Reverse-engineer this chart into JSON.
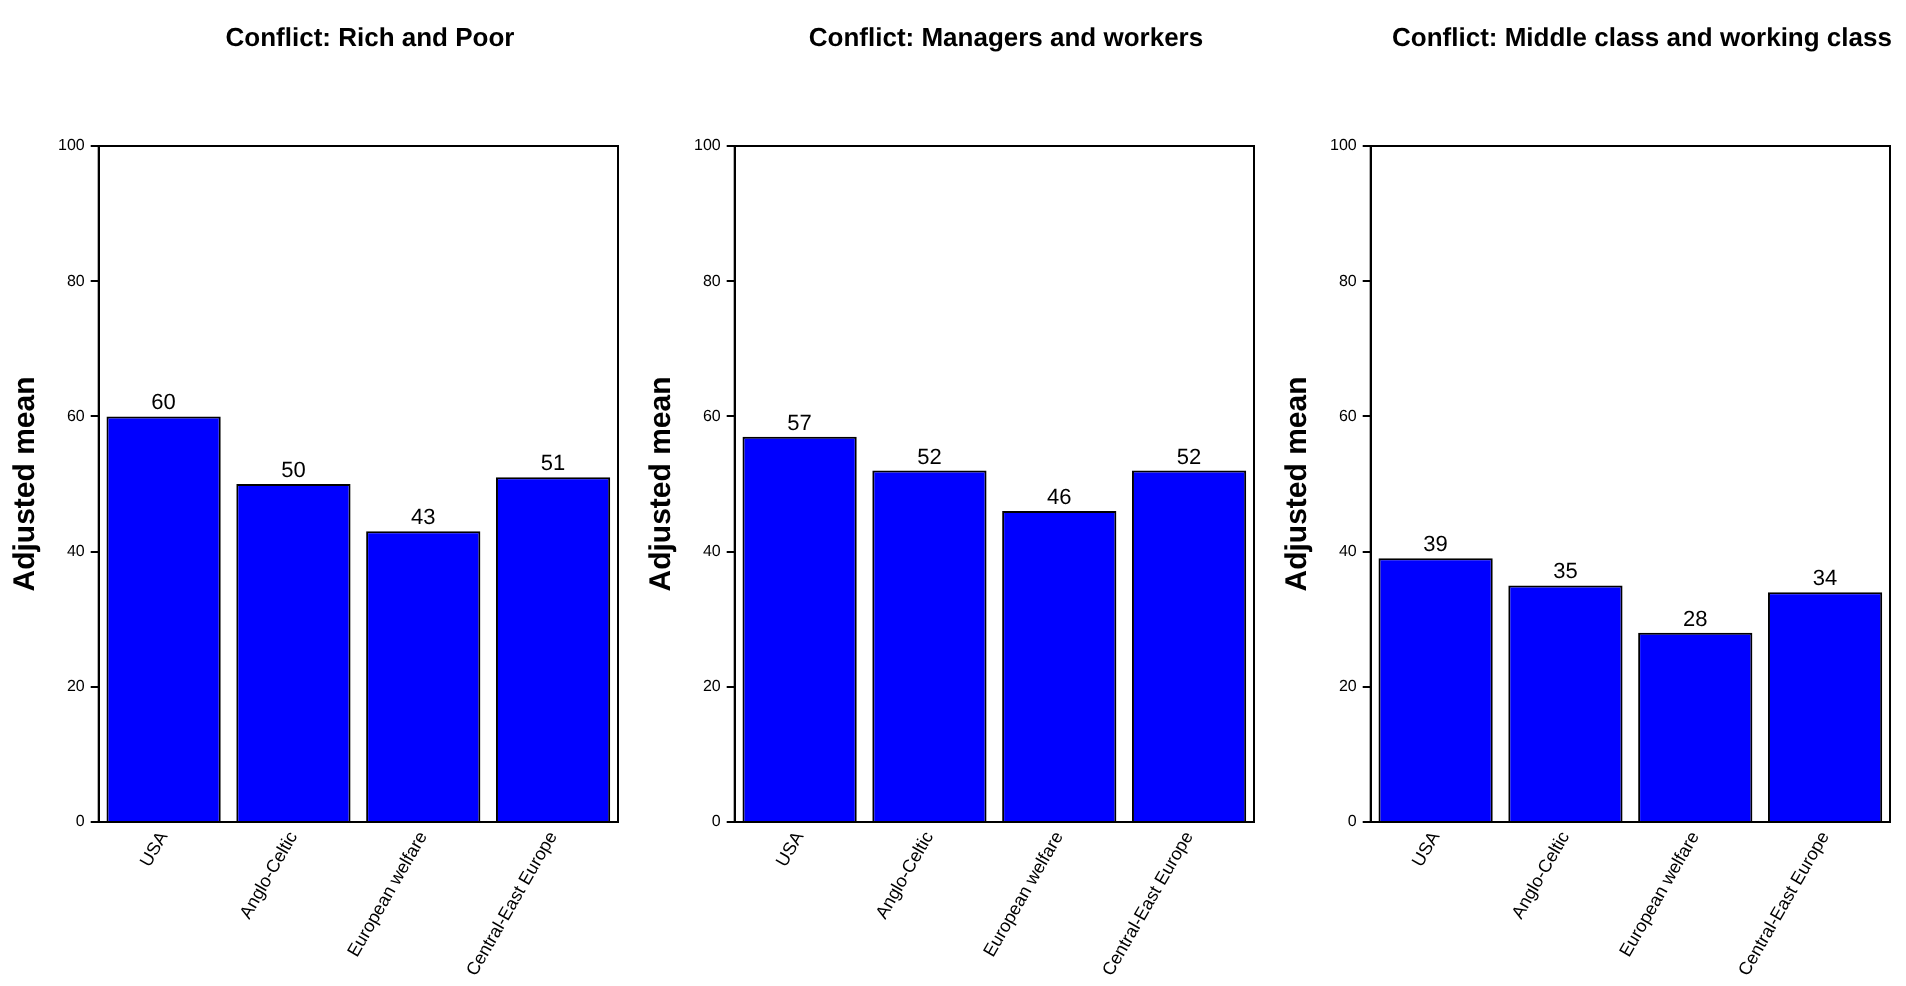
{
  "chart_data": [
    {
      "type": "bar",
      "title": "Conflict: Rich and Poor",
      "ylabel": "Adjusted mean",
      "categories": [
        "USA",
        "Anglo-Celtic",
        "European welfare",
        "Central-East Europe"
      ],
      "values": [
        60,
        50,
        43,
        51
      ],
      "color": "#0000ff",
      "ylim": [
        0,
        100
      ],
      "yticks": [
        0,
        20,
        40,
        60,
        80,
        100
      ],
      "data_labels": true,
      "grid": false,
      "legend": false
    },
    {
      "type": "bar",
      "title": "Conflict: Managers and workers",
      "ylabel": "Adjusted mean",
      "categories": [
        "USA",
        "Anglo-Celtic",
        "European welfare",
        "Central-East Europe"
      ],
      "values": [
        57,
        52,
        46,
        52
      ],
      "color": "#0000ff",
      "ylim": [
        0,
        100
      ],
      "yticks": [
        0,
        20,
        40,
        60,
        80,
        100
      ],
      "data_labels": true,
      "grid": false,
      "legend": false
    },
    {
      "type": "bar",
      "title": "Conflict: Middle class and working class",
      "ylabel": "Adjusted mean",
      "categories": [
        "USA",
        "Anglo-Celtic",
        "European welfare",
        "Central-East Europe"
      ],
      "values": [
        39,
        35,
        28,
        34
      ],
      "color": "#0000ff",
      "ylim": [
        0,
        100
      ],
      "yticks": [
        0,
        20,
        40,
        60,
        80,
        100
      ],
      "data_labels": true,
      "grid": false,
      "legend": false
    }
  ]
}
